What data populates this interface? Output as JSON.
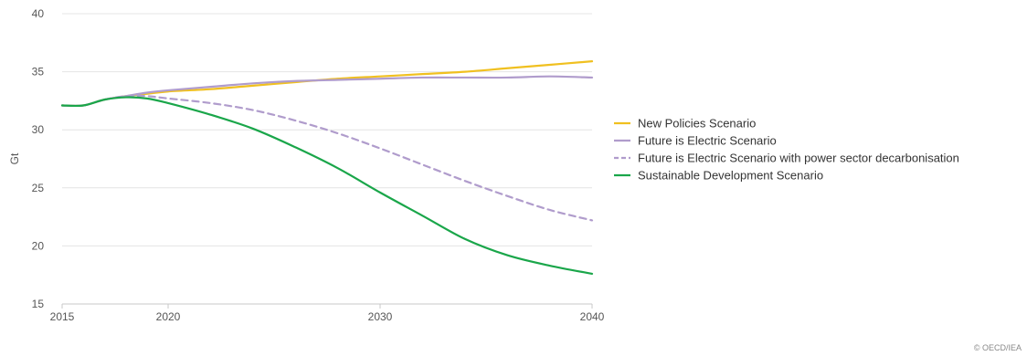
{
  "chart_data": {
    "type": "line",
    "title": "",
    "xlabel": "",
    "ylabel": "Gt",
    "xlim": [
      2015,
      2040
    ],
    "ylim": [
      15,
      40
    ],
    "xticks": [
      2015,
      2020,
      2030,
      2040
    ],
    "yticks": [
      15,
      20,
      25,
      30,
      35,
      40
    ],
    "grid": "horizontal",
    "legend_position": "right",
    "credit": "© OECD/IEA",
    "series": [
      {
        "name": "New Policies Scenario",
        "color": "#f0c020",
        "dash": "solid",
        "x": [
          2015,
          2016,
          2017,
          2018,
          2019,
          2020,
          2022,
          2024,
          2026,
          2028,
          2030,
          2032,
          2034,
          2036,
          2038,
          2040
        ],
        "y": [
          32.1,
          32.1,
          32.6,
          32.9,
          33.1,
          33.3,
          33.5,
          33.8,
          34.1,
          34.4,
          34.6,
          34.8,
          35.0,
          35.3,
          35.6,
          35.9
        ]
      },
      {
        "name": "Future is Electric Scenario",
        "color": "#b09ccc",
        "dash": "solid",
        "x": [
          2015,
          2016,
          2017,
          2018,
          2019,
          2020,
          2022,
          2024,
          2026,
          2028,
          2030,
          2032,
          2034,
          2036,
          2038,
          2040
        ],
        "y": [
          32.1,
          32.1,
          32.6,
          32.9,
          33.2,
          33.4,
          33.7,
          34.0,
          34.2,
          34.3,
          34.4,
          34.5,
          34.5,
          34.5,
          34.6,
          34.5
        ]
      },
      {
        "name": "Future is Electric Scenario with power sector decarbonisation",
        "color": "#b09ccc",
        "dash": "dashed",
        "x": [
          2015,
          2016,
          2017,
          2018,
          2019,
          2020,
          2022,
          2024,
          2026,
          2028,
          2030,
          2032,
          2034,
          2036,
          2038,
          2040
        ],
        "y": [
          32.1,
          32.1,
          32.6,
          32.9,
          32.9,
          32.7,
          32.3,
          31.7,
          30.8,
          29.7,
          28.4,
          27.0,
          25.6,
          24.3,
          23.1,
          22.2
        ]
      },
      {
        "name": "Sustainable Development Scenario",
        "color": "#1aa64a",
        "dash": "solid",
        "x": [
          2015,
          2016,
          2017,
          2018,
          2019,
          2020,
          2022,
          2024,
          2026,
          2028,
          2030,
          2032,
          2034,
          2036,
          2038,
          2040
        ],
        "y": [
          32.1,
          32.1,
          32.6,
          32.8,
          32.7,
          32.3,
          31.3,
          30.1,
          28.5,
          26.7,
          24.6,
          22.6,
          20.6,
          19.2,
          18.3,
          17.6
        ]
      }
    ]
  }
}
